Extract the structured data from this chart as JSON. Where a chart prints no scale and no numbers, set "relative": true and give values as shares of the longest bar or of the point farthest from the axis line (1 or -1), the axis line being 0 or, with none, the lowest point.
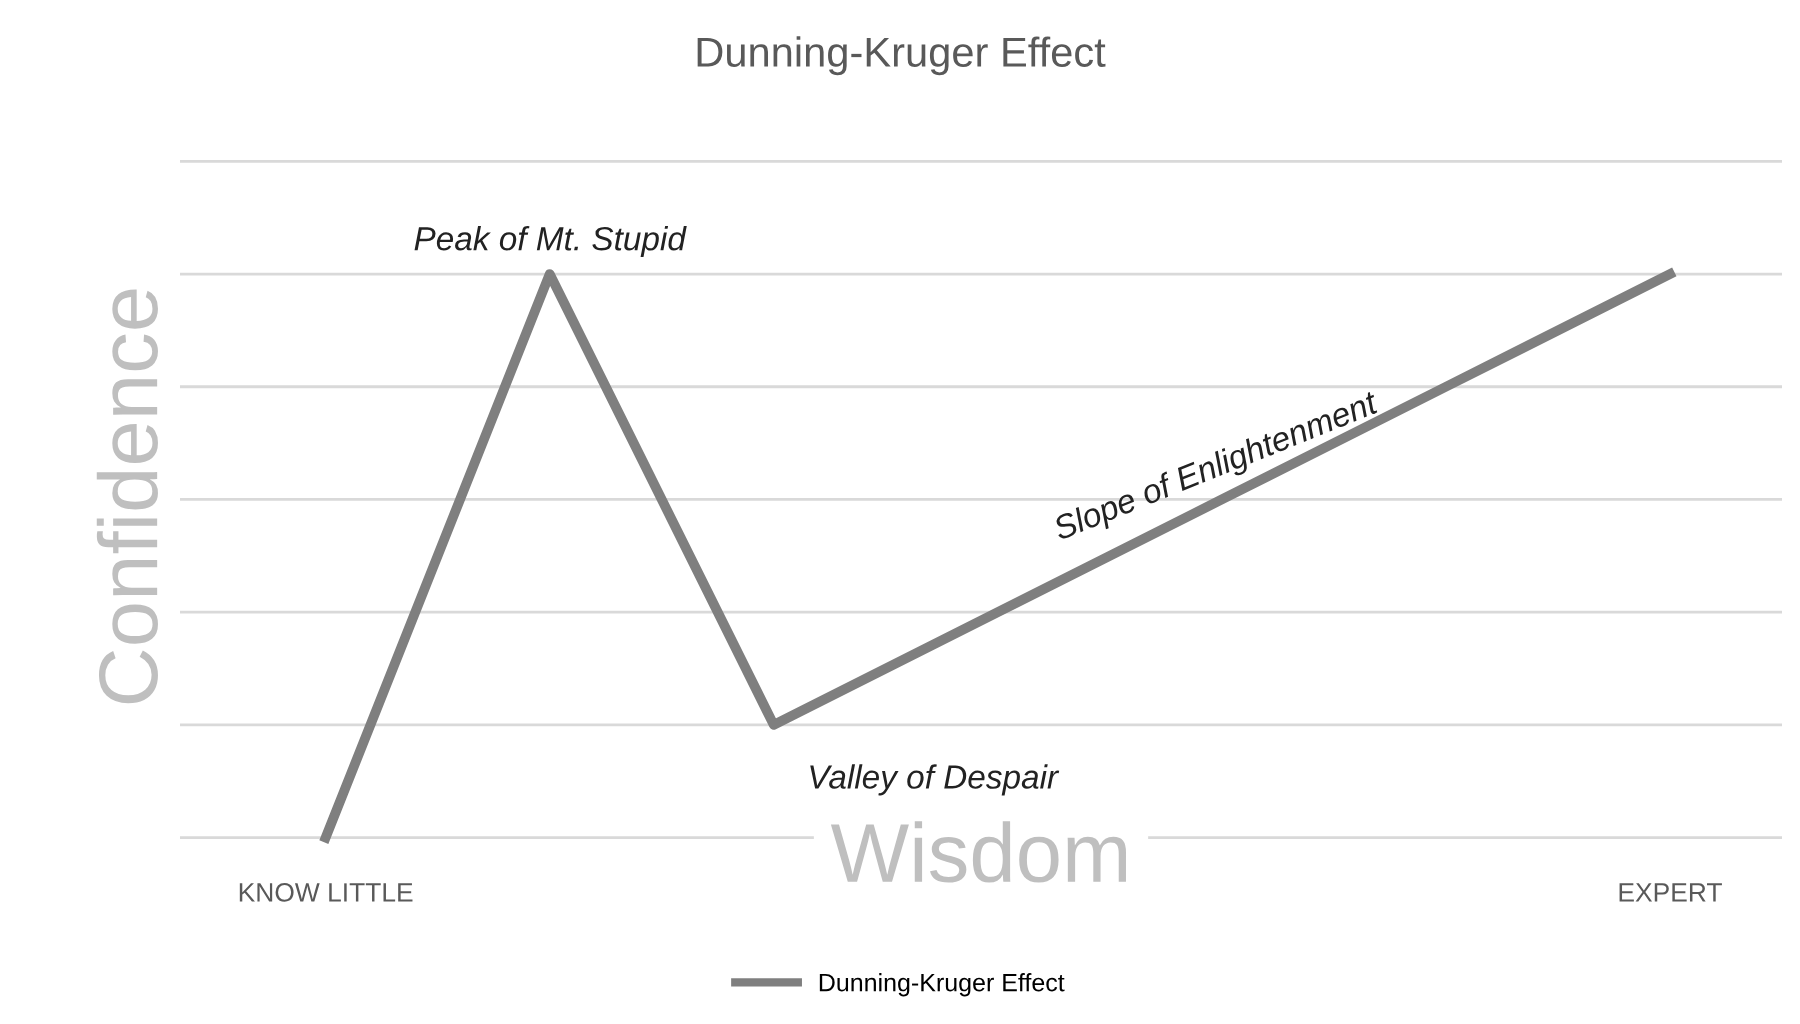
{
  "chart_data": {
    "type": "line",
    "title": "Dunning-Kruger Effect",
    "xlabel": "Wisdom",
    "ylabel": "Confidence",
    "categories": [
      "KNOW LITTLE",
      null,
      null,
      null,
      null,
      null,
      "EXPERT"
    ],
    "series": [
      {
        "name": "Dunning-Kruger Effect",
        "color": "#7f7f7f",
        "values": [
          0,
          1,
          0.2,
          0.4,
          0.6,
          0.8,
          1
        ]
      }
    ],
    "relative": true,
    "grid": "y",
    "legend": "bottom",
    "marker": "none",
    "line_style": "solid",
    "annotations": [
      "Peak of Mt. Stupid",
      "Valley of Despair",
      "Slope of Enlightenment"
    ]
  }
}
